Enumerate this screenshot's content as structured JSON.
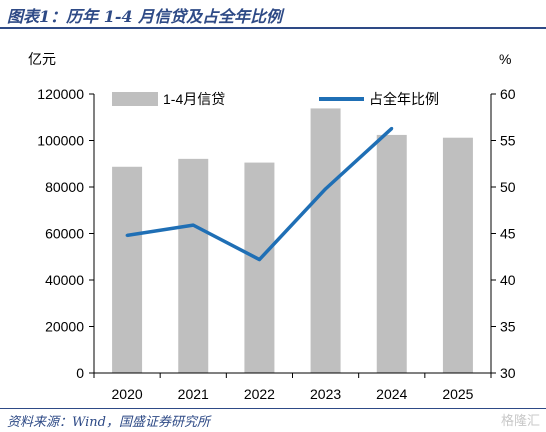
{
  "header": {
    "title": "图表1：历年 1-4 月信贷及占全年比例"
  },
  "footer": {
    "source": "资料来源：Wind，国盛证券研究所",
    "watermark": "格隆汇"
  },
  "chart_data": {
    "type": "bar",
    "categories": [
      "2020",
      "2021",
      "2022",
      "2023",
      "2024",
      "2025"
    ],
    "series": [
      {
        "name": "1-4月信贷",
        "type": "bar",
        "axis": "left",
        "color": "#bfbfbf",
        "values": [
          88700,
          92100,
          90500,
          113800,
          102400,
          101200
        ]
      },
      {
        "name": "占全年比例",
        "type": "line",
        "axis": "right",
        "color": "#1f6fb5",
        "values": [
          44.8,
          45.9,
          42.2,
          49.8,
          56.3,
          null
        ]
      }
    ],
    "left_axis": {
      "unit": "亿元",
      "ylim": [
        0,
        120000
      ],
      "ticks": [
        "0",
        "20000",
        "40000",
        "60000",
        "80000",
        "100000",
        "120000"
      ]
    },
    "right_axis": {
      "unit": "%",
      "ylim": [
        30,
        60
      ],
      "ticks": [
        "30",
        "35",
        "40",
        "45",
        "50",
        "55",
        "60"
      ]
    },
    "legend": {
      "placement": "top",
      "items": [
        "1-4月信贷",
        "占全年比例"
      ]
    },
    "grid": false
  }
}
